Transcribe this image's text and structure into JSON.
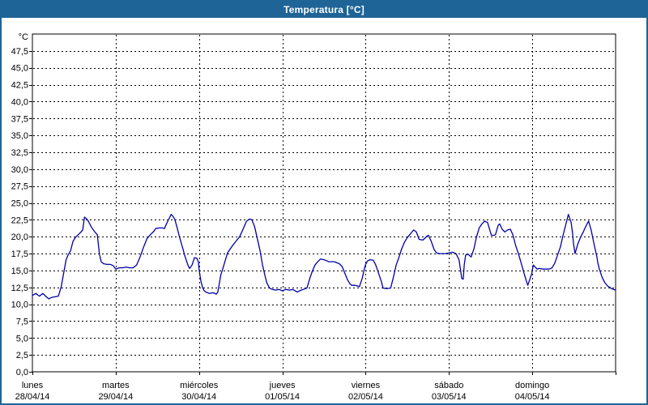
{
  "title": "Temperatura [°C]",
  "colors": {
    "titlebar": "#1e6496",
    "window_border": "#1e6496",
    "line": "#0000a8",
    "grid": "#000000",
    "background": "#ffffff"
  },
  "chart_data": {
    "type": "line",
    "title": "Temperatura [°C]",
    "unit_label": "°C",
    "grid": {
      "style": "dashed",
      "horizontal": true,
      "vertical": true
    },
    "y_axis": {
      "min": 0,
      "max": 50,
      "tick_step": 2.5,
      "tick_labels": [
        "0,0",
        "2,5",
        "5,0",
        "7,5",
        "10,0",
        "12,5",
        "15,0",
        "17,5",
        "20,0",
        "22,5",
        "25,0",
        "27,5",
        "30,0",
        "32,5",
        "35,0",
        "37,5",
        "40,0",
        "42,5",
        "45,0",
        "47,5"
      ]
    },
    "x_axis": {
      "hours_total": 168,
      "hours_per_day": 24,
      "days": [
        {
          "name": "lunes",
          "date": "28/04/14"
        },
        {
          "name": "martes",
          "date": "29/04/14"
        },
        {
          "name": "miércoles",
          "date": "30/04/14"
        },
        {
          "name": "jueves",
          "date": "01/05/14"
        },
        {
          "name": "viernes",
          "date": "02/05/14"
        },
        {
          "name": "sábado",
          "date": "03/05/14"
        },
        {
          "name": "domingo",
          "date": "04/05/14"
        }
      ]
    },
    "series": [
      {
        "name": "Temperatura",
        "color": "#0000a8",
        "points": [
          [
            0,
            11.3
          ],
          [
            1,
            11.6
          ],
          [
            2,
            11.2
          ],
          [
            3,
            11.6
          ],
          [
            4,
            11.1
          ],
          [
            4.7,
            10.8
          ],
          [
            5.5,
            11.0
          ],
          [
            6.5,
            11.1
          ],
          [
            7.5,
            11.2
          ],
          [
            8.3,
            12.6
          ],
          [
            9,
            14.6
          ],
          [
            9.7,
            16.6
          ],
          [
            10.3,
            17.3
          ],
          [
            11,
            17.9
          ],
          [
            11.7,
            19.3
          ],
          [
            12.4,
            19.9
          ],
          [
            13.2,
            20.3
          ],
          [
            14,
            20.7
          ],
          [
            14.5,
            21.0
          ],
          [
            15,
            22.9
          ],
          [
            15.5,
            22.7
          ],
          [
            16,
            22.4
          ],
          [
            17,
            21.4
          ],
          [
            18,
            20.7
          ],
          [
            18.7,
            20.3
          ],
          [
            19.3,
            17.5
          ],
          [
            19.8,
            16.3
          ],
          [
            20.5,
            16.0
          ],
          [
            21.5,
            15.9
          ],
          [
            22.5,
            15.9
          ],
          [
            23.3,
            15.7
          ],
          [
            24,
            15.2
          ],
          [
            25,
            15.4
          ],
          [
            26,
            15.4
          ],
          [
            27,
            15.5
          ],
          [
            28,
            15.4
          ],
          [
            29,
            15.4
          ],
          [
            30,
            15.8
          ],
          [
            31,
            17.0
          ],
          [
            32,
            18.4
          ],
          [
            33,
            19.7
          ],
          [
            34,
            20.3
          ],
          [
            35,
            20.8
          ],
          [
            35.5,
            21.2
          ],
          [
            36.5,
            21.3
          ],
          [
            37.5,
            21.3
          ],
          [
            38,
            21.2
          ],
          [
            39,
            22.3
          ],
          [
            40,
            23.3
          ],
          [
            40.5,
            23.0
          ],
          [
            41,
            22.6
          ],
          [
            41.6,
            21.5
          ],
          [
            42.4,
            19.9
          ],
          [
            43.2,
            18.5
          ],
          [
            44,
            17.0
          ],
          [
            44.8,
            15.8
          ],
          [
            45.3,
            15.3
          ],
          [
            46,
            15.8
          ],
          [
            46.7,
            16.9
          ],
          [
            47.4,
            16.8
          ],
          [
            47.8,
            16.3
          ],
          [
            48,
            15.2
          ],
          [
            48.5,
            13.5
          ],
          [
            49,
            12.5
          ],
          [
            49.5,
            12.0
          ],
          [
            50,
            11.8
          ],
          [
            51,
            11.6
          ],
          [
            52,
            11.7
          ],
          [
            53,
            11.5
          ],
          [
            53.4,
            11.8
          ],
          [
            54.3,
            14.4
          ],
          [
            54.7,
            15.0
          ],
          [
            55.5,
            16.4
          ],
          [
            56.2,
            17.6
          ],
          [
            57.4,
            18.5
          ],
          [
            58.6,
            19.3
          ],
          [
            59.7,
            20.0
          ],
          [
            60.5,
            20.9
          ],
          [
            61.7,
            22.3
          ],
          [
            62.5,
            22.6
          ],
          [
            63.2,
            22.5
          ],
          [
            64,
            21.5
          ],
          [
            64.8,
            19.7
          ],
          [
            65.6,
            17.9
          ],
          [
            66.3,
            15.8
          ],
          [
            67.1,
            14.0
          ],
          [
            67.5,
            13.2
          ],
          [
            68.3,
            12.4
          ],
          [
            69.1,
            12.2
          ],
          [
            70,
            12.1
          ],
          [
            71,
            12.2
          ],
          [
            72,
            12.0
          ],
          [
            73,
            12.2
          ],
          [
            74,
            12.1
          ],
          [
            75,
            12.2
          ],
          [
            76,
            11.9
          ],
          [
            76.3,
            11.8
          ],
          [
            77,
            12.0
          ],
          [
            78,
            12.2
          ],
          [
            79.1,
            12.4
          ],
          [
            79.9,
            13.8
          ],
          [
            80.7,
            15.0
          ],
          [
            81.4,
            15.8
          ],
          [
            82.2,
            16.3
          ],
          [
            83,
            16.7
          ],
          [
            84,
            16.6
          ],
          [
            84.9,
            16.4
          ],
          [
            85.3,
            16.3
          ],
          [
            87,
            16.3
          ],
          [
            88.4,
            16.0
          ],
          [
            89.2,
            15.6
          ],
          [
            90,
            14.6
          ],
          [
            90.8,
            13.6
          ],
          [
            91.5,
            13.0
          ],
          [
            92,
            12.8
          ],
          [
            93,
            12.8
          ],
          [
            94.2,
            12.6
          ],
          [
            95,
            13.8
          ],
          [
            95.7,
            15.4
          ],
          [
            96,
            15.9
          ],
          [
            96.5,
            16.4
          ],
          [
            97.3,
            16.6
          ],
          [
            98.2,
            16.5
          ],
          [
            98.9,
            15.8
          ],
          [
            99.7,
            14.6
          ],
          [
            100.5,
            13.4
          ],
          [
            101,
            12.4
          ],
          [
            102,
            12.3
          ],
          [
            103.2,
            12.4
          ],
          [
            104,
            14.0
          ],
          [
            104.8,
            15.8
          ],
          [
            105.5,
            16.8
          ],
          [
            106.3,
            18.1
          ],
          [
            107.1,
            19.1
          ],
          [
            107.9,
            19.8
          ],
          [
            108.7,
            20.3
          ],
          [
            109.8,
            21.0
          ],
          [
            110.6,
            20.7
          ],
          [
            111.4,
            19.6
          ],
          [
            112.5,
            19.5
          ],
          [
            113.7,
            20.1
          ],
          [
            114.1,
            20.2
          ],
          [
            114.9,
            19.3
          ],
          [
            115.7,
            18.1
          ],
          [
            116.4,
            17.6
          ],
          [
            117.2,
            17.5
          ],
          [
            118,
            17.5
          ],
          [
            119,
            17.5
          ],
          [
            120,
            17.6
          ],
          [
            121,
            17.7
          ],
          [
            122,
            17.5
          ],
          [
            122.9,
            16.6
          ],
          [
            123.7,
            13.8
          ],
          [
            124.1,
            13.7
          ],
          [
            124.4,
            15.8
          ],
          [
            124.8,
            17.3
          ],
          [
            125.5,
            17.4
          ],
          [
            126.4,
            17.0
          ],
          [
            127.2,
            18.2
          ],
          [
            127.9,
            19.9
          ],
          [
            128.7,
            21.3
          ],
          [
            129.5,
            21.9
          ],
          [
            130.3,
            22.3
          ],
          [
            131.1,
            22.1
          ],
          [
            131.8,
            20.9
          ],
          [
            132.2,
            20.2
          ],
          [
            133,
            20.2
          ],
          [
            133.4,
            20.3
          ],
          [
            134.2,
            21.7
          ],
          [
            134.6,
            21.9
          ],
          [
            135.3,
            21.1
          ],
          [
            136.1,
            20.7
          ],
          [
            136.9,
            21.0
          ],
          [
            137.7,
            21.1
          ],
          [
            138.4,
            20.3
          ],
          [
            139.2,
            18.7
          ],
          [
            140,
            17.5
          ],
          [
            140.8,
            16.1
          ],
          [
            141.6,
            14.6
          ],
          [
            142.3,
            13.4
          ],
          [
            142.7,
            12.8
          ],
          [
            143.1,
            13.4
          ],
          [
            143.9,
            14.6
          ],
          [
            144,
            15.0
          ],
          [
            144.3,
            15.8
          ],
          [
            145.4,
            15.2
          ],
          [
            146,
            15.3
          ],
          [
            147,
            15.2
          ],
          [
            148.2,
            15.2
          ],
          [
            148.9,
            15.2
          ],
          [
            149.7,
            15.4
          ],
          [
            150.5,
            16.1
          ],
          [
            151.3,
            17.3
          ],
          [
            152.1,
            18.5
          ],
          [
            152.8,
            20.1
          ],
          [
            153.6,
            21.7
          ],
          [
            154.4,
            23.3
          ],
          [
            155.2,
            22.1
          ],
          [
            155.6,
            20.5
          ],
          [
            155.9,
            18.9
          ],
          [
            156.3,
            17.5
          ],
          [
            157.1,
            18.9
          ],
          [
            157.9,
            19.9
          ],
          [
            158.7,
            20.7
          ],
          [
            159.4,
            21.5
          ],
          [
            160.2,
            22.3
          ],
          [
            161,
            20.9
          ],
          [
            161.8,
            18.9
          ],
          [
            162.6,
            17.0
          ],
          [
            162.9,
            16.1
          ],
          [
            163.3,
            15.2
          ],
          [
            164.1,
            14.0
          ],
          [
            164.9,
            13.2
          ],
          [
            165.7,
            12.7
          ],
          [
            166.4,
            12.5
          ],
          [
            166.8,
            12.3
          ],
          [
            168,
            12.1
          ]
        ]
      }
    ]
  }
}
